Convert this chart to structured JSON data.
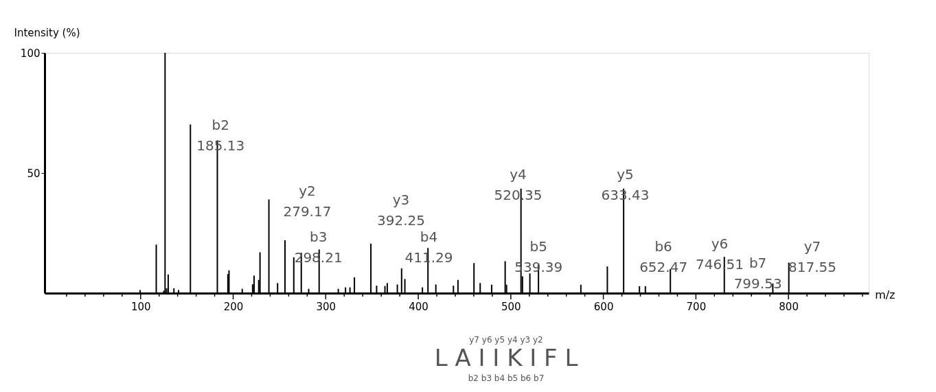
{
  "chart_data": {
    "type": "bar",
    "ylabel": "Intensity (%)",
    "xlabel": "m/z",
    "x": [
      99.5,
      116.9,
      125,
      126.4,
      128,
      129.8,
      136,
      141,
      153.8,
      182.9,
      194.3,
      195.5,
      209.8,
      221,
      222.6,
      227.6,
      229,
      238.6,
      248,
      256,
      265.5,
      273.6,
      281.6,
      292.9,
      313.6,
      321.4,
      326.2,
      331,
      348.8,
      355,
      364,
      366.5,
      377.4,
      382,
      385.5,
      404.5,
      410.5,
      419,
      438,
      442.9,
      460.2,
      466.9,
      479.3,
      493.9,
      495.4,
      511,
      512.6,
      520.6,
      529.9,
      575.7,
      604.3,
      621.9,
      639,
      645.4,
      672.4,
      730.7,
      783.1,
      800.4
    ],
    "values": [
      1.3,
      20.2,
      1,
      100,
      2,
      7.8,
      2,
      1.3,
      70.2,
      63.6,
      7.9,
      9.5,
      1.8,
      3.7,
      7.3,
      5.5,
      17,
      39,
      4.2,
      22,
      14.9,
      16.8,
      1.8,
      18.2,
      1.8,
      2.4,
      2.4,
      6.6,
      20.6,
      3.1,
      3,
      4.2,
      3.6,
      10.3,
      5.9,
      2.4,
      18.8,
      3.6,
      3.1,
      5.5,
      12.5,
      4.2,
      3.5,
      13.3,
      3.5,
      43.5,
      7,
      8.2,
      12.2,
      3.5,
      11.1,
      43.5,
      2.9,
      2.9,
      10,
      15.1,
      4,
      12.7
    ],
    "color": "#000000",
    "xlim": [
      0,
      883
    ],
    "ylim": [
      0,
      100
    ],
    "xticks": [
      {
        "value": 20,
        "label": null
      },
      {
        "value": 40,
        "label": null
      },
      {
        "value": 60,
        "label": null
      },
      {
        "value": 80,
        "label": null
      },
      100,
      {
        "value": 120,
        "label": null
      },
      {
        "value": 140,
        "label": null
      },
      {
        "value": 160,
        "label": null
      },
      {
        "value": 180,
        "label": null
      },
      200,
      {
        "value": 220,
        "label": null
      },
      {
        "value": 240,
        "label": null
      },
      {
        "value": 260,
        "label": null
      },
      {
        "value": 280,
        "label": null
      },
      300,
      {
        "value": 320,
        "label": null
      },
      {
        "value": 340,
        "label": null
      },
      {
        "value": 360,
        "label": null
      },
      {
        "value": 380,
        "label": null
      },
      400,
      {
        "value": 420,
        "label": null
      },
      {
        "value": 440,
        "label": null
      },
      {
        "value": 460,
        "label": null
      },
      {
        "value": 480,
        "label": null
      },
      500,
      {
        "value": 520,
        "label": null
      },
      {
        "value": 540,
        "label": null
      },
      {
        "value": 560,
        "label": null
      },
      {
        "value": 580,
        "label": null
      },
      600,
      {
        "value": 620,
        "label": null
      },
      {
        "value": 640,
        "label": null
      },
      {
        "value": 660,
        "label": null
      },
      {
        "value": 680,
        "label": null
      },
      700,
      {
        "value": 720,
        "label": null
      },
      {
        "value": 740,
        "label": null
      },
      {
        "value": 760,
        "label": null
      },
      {
        "value": 780,
        "label": null
      },
      800,
      {
        "value": 820,
        "label": null
      },
      {
        "value": 840,
        "label": null
      },
      {
        "value": 860,
        "label": null
      },
      {
        "value": 880,
        "label": null
      }
    ],
    "yticks": [
      50,
      100
    ],
    "grid": false,
    "annotations": [
      {
        "text": "b2\n185.13",
        "x": 182.9,
        "y": 63.6
      },
      {
        "text": "y2\n279.17",
        "x": 273.6,
        "y": 16.8
      },
      {
        "text": "b3\n298.21",
        "x": 292.9,
        "y": 18.2
      },
      {
        "text": "y3\n392.25",
        "x": 382,
        "y": 10.3
      },
      {
        "text": "b4\n411.29",
        "x": 410.5,
        "y": 18.8
      },
      {
        "text": "y4\n520.35",
        "x": 511,
        "y": 43.5
      },
      {
        "text": "b5\n539.39",
        "x": 529.9,
        "y": 12.2
      },
      {
        "text": "y5\n633.43",
        "x": 621.9,
        "y": 43.5
      },
      {
        "text": "b6\n652.47",
        "x": 672.4,
        "y": 10
      },
      {
        "text": "y6\n746.51",
        "x": 730.7,
        "y": 15.1
      },
      {
        "text": "b7\n799.53",
        "x": 783.1,
        "y": 4
      },
      {
        "text": "y7\n817.55",
        "x": 800.4,
        "y": 12.7
      },
      "y7 y6 y5 y4 y3 y2",
      "L A I I K I F L",
      "b2 b3 b4 b5 b6 b7"
    ]
  }
}
